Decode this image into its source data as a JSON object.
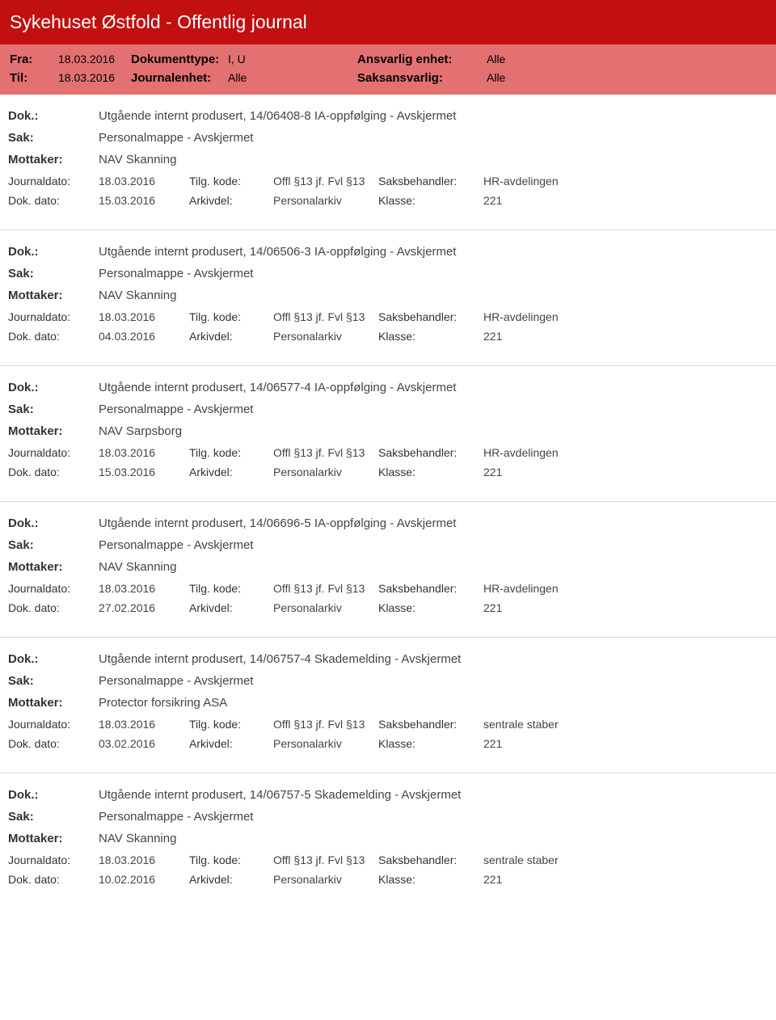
{
  "header": {
    "title": "Sykehuset Østfold - Offentlig journal",
    "row1": {
      "fra_label": "Fra:",
      "fra_value": "18.03.2016",
      "doktype_label": "Dokumenttype:",
      "doktype_value": "I, U",
      "ansvarlig_label": "Ansvarlig enhet:",
      "ansvarlig_value": "Alle"
    },
    "row2": {
      "til_label": "Til:",
      "til_value": "18.03.2016",
      "journalenhet_label": "Journalenhet:",
      "journalenhet_value": "Alle",
      "saksansvarlig_label": "Saksansvarlig:",
      "saksansvarlig_value": "Alle"
    }
  },
  "labels": {
    "dok": "Dok.:",
    "sak": "Sak:",
    "mottaker": "Mottaker:",
    "journaldato": "Journaldato:",
    "dokdato": "Dok. dato:",
    "tilgkode": "Tilg. kode:",
    "arkivdel": "Arkivdel:",
    "saksbehandler": "Saksbehandler:",
    "klasse": "Klasse:"
  },
  "entries": [
    {
      "dok": "Utgående internt produsert, 14/06408-8 IA-oppfølging - Avskjermet",
      "sak": "Personalmappe - Avskjermet",
      "mottaker": "NAV Skanning",
      "journaldato": "18.03.2016",
      "dokdato": "15.03.2016",
      "tilgkode": "Offl §13 jf. Fvl §13",
      "arkivdel": "Personalarkiv",
      "saksbehandler": "HR-avdelingen",
      "klasse": "221"
    },
    {
      "dok": "Utgående internt produsert, 14/06506-3 IA-oppfølging - Avskjermet",
      "sak": "Personalmappe - Avskjermet",
      "mottaker": "NAV Skanning",
      "journaldato": "18.03.2016",
      "dokdato": "04.03.2016",
      "tilgkode": "Offl §13 jf. Fvl §13",
      "arkivdel": "Personalarkiv",
      "saksbehandler": "HR-avdelingen",
      "klasse": "221"
    },
    {
      "dok": "Utgående internt produsert, 14/06577-4 IA-oppfølging - Avskjermet",
      "sak": "Personalmappe - Avskjermet",
      "mottaker": "NAV Sarpsborg",
      "journaldato": "18.03.2016",
      "dokdato": "15.03.2016",
      "tilgkode": "Offl §13 jf. Fvl §13",
      "arkivdel": "Personalarkiv",
      "saksbehandler": "HR-avdelingen",
      "klasse": "221"
    },
    {
      "dok": "Utgående internt produsert, 14/06696-5 IA-oppfølging - Avskjermet",
      "sak": "Personalmappe - Avskjermet",
      "mottaker": "NAV Skanning",
      "journaldato": "18.03.2016",
      "dokdato": "27.02.2016",
      "tilgkode": "Offl §13 jf. Fvl §13",
      "arkivdel": "Personalarkiv",
      "saksbehandler": "HR-avdelingen",
      "klasse": "221"
    },
    {
      "dok": "Utgående internt produsert, 14/06757-4 Skademelding - Avskjermet",
      "sak": "Personalmappe - Avskjermet",
      "mottaker": "Protector forsikring ASA",
      "journaldato": "18.03.2016",
      "dokdato": "03.02.2016",
      "tilgkode": "Offl §13 jf. Fvl §13",
      "arkivdel": "Personalarkiv",
      "saksbehandler": "sentrale staber",
      "klasse": "221"
    },
    {
      "dok": "Utgående internt produsert, 14/06757-5 Skademelding - Avskjermet",
      "sak": "Personalmappe - Avskjermet",
      "mottaker": "NAV Skanning",
      "journaldato": "18.03.2016",
      "dokdato": "10.02.2016",
      "tilgkode": "Offl §13 jf. Fvl §13",
      "arkivdel": "Personalarkiv",
      "saksbehandler": "sentrale staber",
      "klasse": "221"
    }
  ]
}
